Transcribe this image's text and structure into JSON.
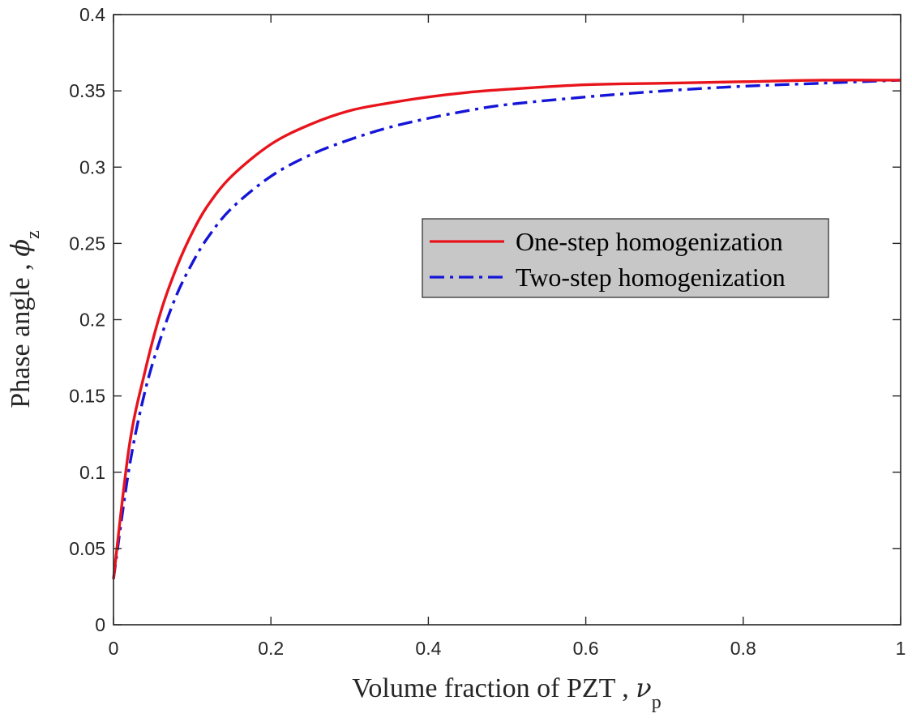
{
  "chart_data": {
    "type": "line",
    "title": "",
    "xlabel": "Volume fraction of PZT , ",
    "xlabel_symbol": "ν",
    "xlabel_subscript": "p",
    "ylabel": "Phase angle , ",
    "ylabel_symbol": "ϕ",
    "ylabel_subscript": "z",
    "xlim": [
      0,
      1
    ],
    "ylim": [
      0,
      0.4
    ],
    "xticks": [
      0,
      0.2,
      0.4,
      0.6,
      0.8,
      1
    ],
    "xtick_labels": [
      "0",
      "0.2",
      "0.4",
      "0.6",
      "0.8",
      "1"
    ],
    "yticks": [
      0,
      0.05,
      0.1,
      0.15,
      0.2,
      0.25,
      0.3,
      0.35,
      0.4
    ],
    "ytick_labels": [
      "0",
      "0.05",
      "0.1",
      "0.15",
      "0.2",
      "0.25",
      "0.3",
      "0.35",
      "0.4"
    ],
    "grid": false,
    "legend_position": "center-right",
    "x": [
      0,
      0.02,
      0.04,
      0.06,
      0.08,
      0.1,
      0.12,
      0.15,
      0.2,
      0.25,
      0.3,
      0.35,
      0.4,
      0.45,
      0.5,
      0.6,
      0.7,
      0.8,
      0.9,
      1.0
    ],
    "series": [
      {
        "name": "One-step homogenization",
        "color": "#e8141c",
        "style": "solid",
        "values": [
          0.03,
          0.117,
          0.166,
          0.205,
          0.234,
          0.257,
          0.275,
          0.294,
          0.315,
          0.328,
          0.337,
          0.342,
          0.346,
          0.349,
          0.351,
          0.354,
          0.355,
          0.356,
          0.357,
          0.357
        ]
      },
      {
        "name": "Two-step homogenization",
        "color": "#1515d8",
        "style": "dashdot",
        "values": [
          0.03,
          0.103,
          0.153,
          0.188,
          0.216,
          0.237,
          0.254,
          0.273,
          0.294,
          0.308,
          0.318,
          0.326,
          0.332,
          0.337,
          0.341,
          0.346,
          0.35,
          0.353,
          0.355,
          0.357
        ]
      }
    ]
  }
}
